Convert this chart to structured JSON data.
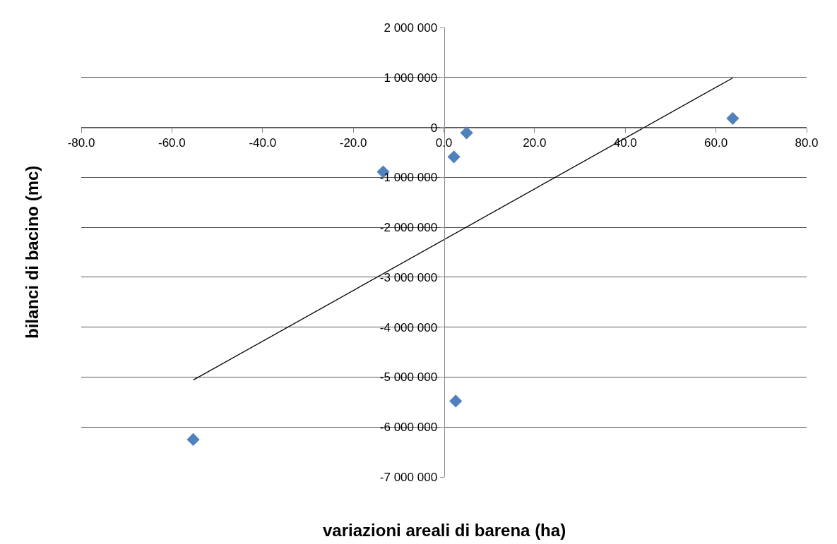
{
  "chart_data": {
    "type": "scatter",
    "xlabel": "variazioni areali di barena (ha)",
    "ylabel": "bilanci di bacino (mc)",
    "xlim": [
      -80,
      80
    ],
    "ylim": [
      -7000000,
      2000000
    ],
    "xticks": [
      {
        "value": -80,
        "label": "-80.0"
      },
      {
        "value": -60,
        "label": "-60.0"
      },
      {
        "value": -40,
        "label": "-40.0"
      },
      {
        "value": -20,
        "label": "-20.0"
      },
      {
        "value": 0,
        "label": "0.0"
      },
      {
        "value": 20,
        "label": "20.0"
      },
      {
        "value": 40,
        "label": "40.0"
      },
      {
        "value": 60,
        "label": "60.0"
      },
      {
        "value": 80,
        "label": "80.0"
      }
    ],
    "yticks": [
      {
        "value": -7000000,
        "label": "-7 000 000"
      },
      {
        "value": -6000000,
        "label": "-6 000 000"
      },
      {
        "value": -5000000,
        "label": "-5 000 000"
      },
      {
        "value": -4000000,
        "label": "-4 000 000"
      },
      {
        "value": -3000000,
        "label": "-3 000 000"
      },
      {
        "value": -2000000,
        "label": "-2 000 000"
      },
      {
        "value": -1000000,
        "label": "-1 000 000"
      },
      {
        "value": 0,
        "label": "0"
      },
      {
        "value": 1000000,
        "label": "1 000 000"
      },
      {
        "value": 2000000,
        "label": "2 000 000"
      }
    ],
    "grid": "y",
    "marker": "diamond",
    "series": [
      {
        "type": "scatter",
        "color": "#4f81bd",
        "x": [
          -55.3,
          -13.4,
          2.2,
          5.0,
          2.6,
          63.7
        ],
        "values": [
          -6250000,
          -890000,
          -590000,
          -110000,
          -5480000,
          180000
        ]
      },
      {
        "type": "line",
        "color": "#000000",
        "marker": "none",
        "line_style": "solid",
        "x": [
          -55.3,
          63.7
        ],
        "values": [
          -5060000,
          990000
        ]
      }
    ]
  }
}
